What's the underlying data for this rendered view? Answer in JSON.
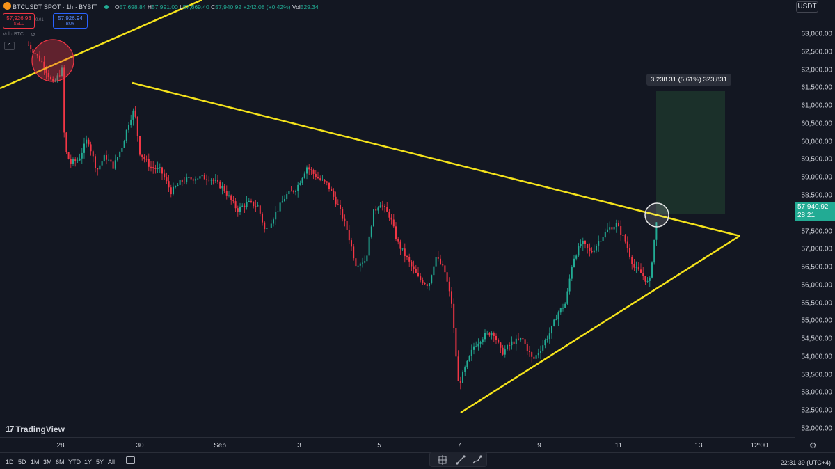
{
  "header": {
    "symbol": "BTCUSDT SPOT · 1h · BYBIT",
    "ohlc": {
      "o_label": "O",
      "o": "57,698.84",
      "h_label": "H",
      "h": "57,991.00",
      "l_label": "L",
      "l": "57,669.40",
      "c_label": "C",
      "c": "57,940.92",
      "change": "+242.08 (+0.42%)",
      "vol_label": "Vol",
      "vol": "529.34"
    },
    "sell_price": "57,926.93",
    "sell_label": "SELL",
    "spread": "0.01",
    "buy_price": "57,926.94",
    "buy_label": "BUY",
    "volume_indicator": "Vol · BTC"
  },
  "price_axis": {
    "currency": "USDT",
    "ticks": [
      "63,000.00",
      "62,500.00",
      "62,000.00",
      "61,500.00",
      "61,000.00",
      "60,500.00",
      "60,000.00",
      "59,500.00",
      "59,000.00",
      "58,500.00",
      "57,500.00",
      "57,000.00",
      "56,500.00",
      "56,000.00",
      "55,500.00",
      "55,000.00",
      "54,500.00",
      "54,000.00",
      "53,500.00",
      "53,000.00",
      "52,500.00",
      "52,000.00"
    ],
    "last_price": "57,940.92",
    "countdown": "28:21"
  },
  "time_axis": {
    "ticks": [
      "28",
      "30",
      "Sep",
      "3",
      "5",
      "7",
      "9",
      "11",
      "13",
      "12:00"
    ]
  },
  "measure": {
    "label": "3,238.31 (5.61%) 323,831"
  },
  "branding": "TradingView",
  "bottom_bar": {
    "ranges": [
      "1D",
      "5D",
      "1M",
      "3M",
      "6M",
      "YTD",
      "1Y",
      "5Y",
      "All"
    ],
    "clock": "22:31:39 (UTC+4)"
  },
  "colors": {
    "up": "#22ab94",
    "down": "#f23645",
    "trendline": "#f5e31b",
    "background": "#131722"
  },
  "icons": [
    "gear-icon",
    "eye-off-icon",
    "chevron-up-icon",
    "compare-icon",
    "crosshair-icon",
    "trendline-icon",
    "brush-icon"
  ]
}
